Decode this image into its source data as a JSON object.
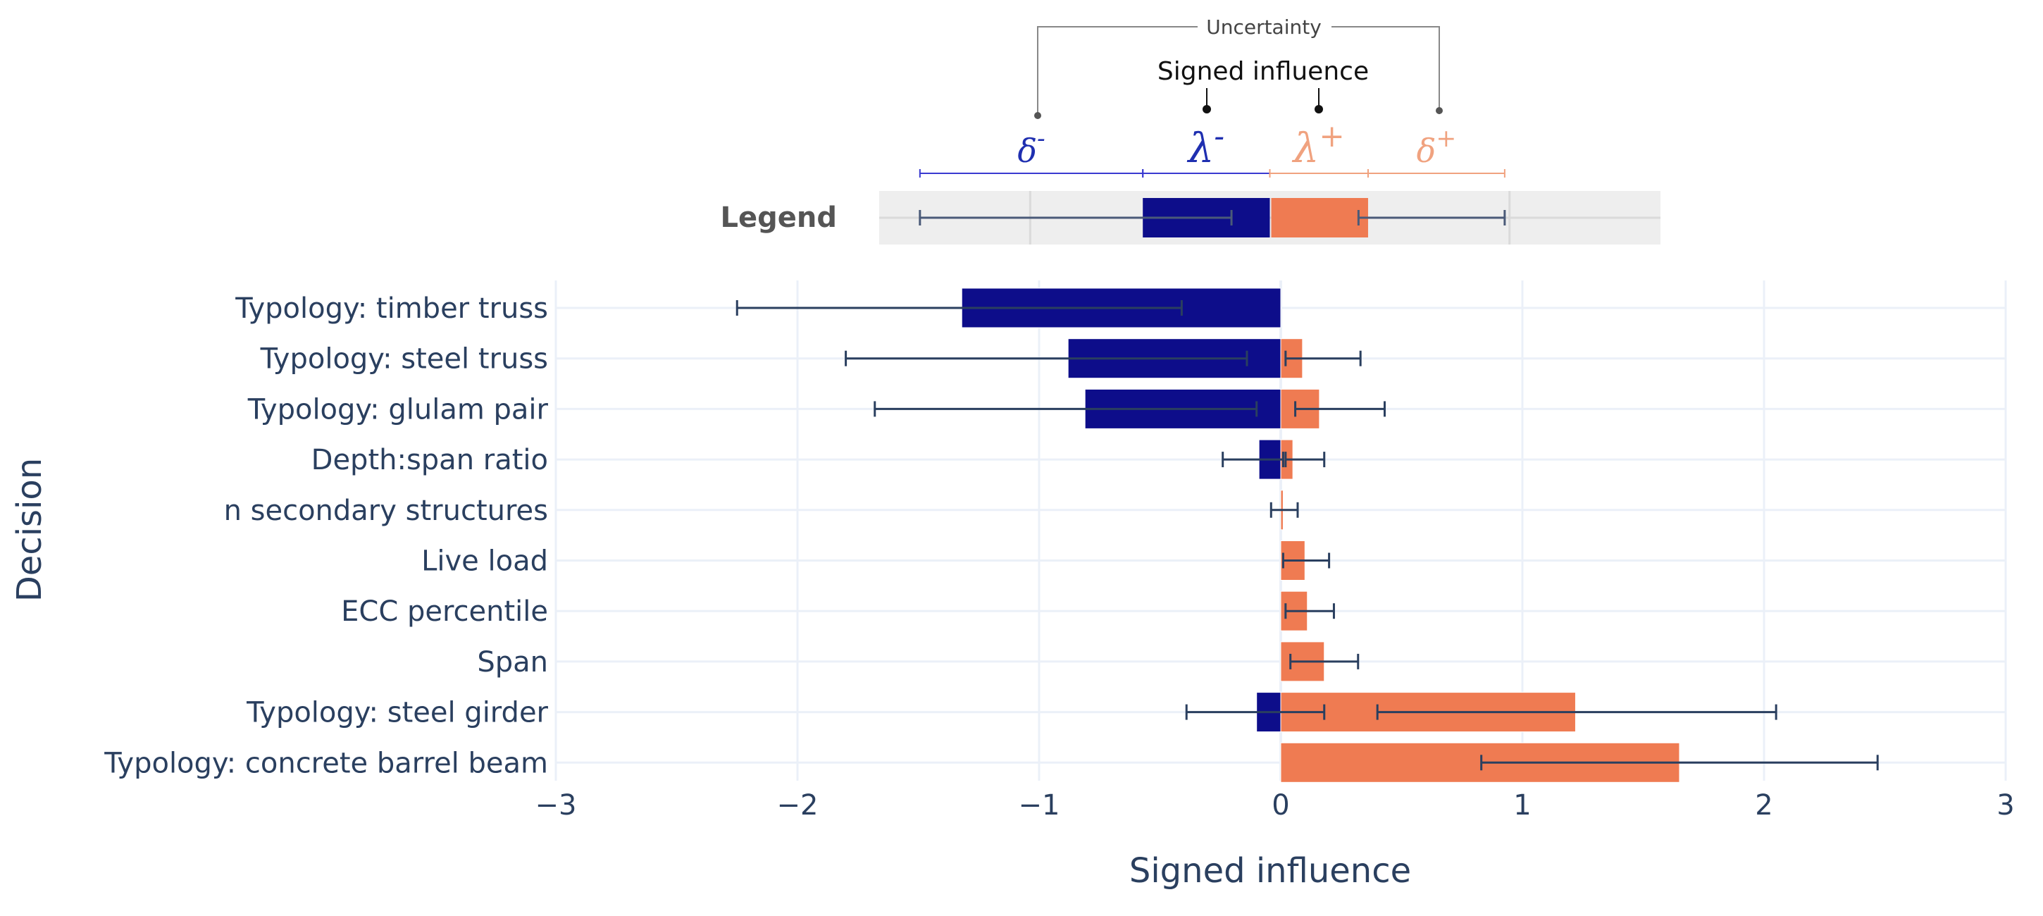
{
  "chart_data": {
    "type": "bar",
    "orientation": "horizontal",
    "title": "",
    "xlabel": "Signed influence",
    "ylabel": "Decision",
    "xlim": [
      -3,
      3
    ],
    "xticks": [
      -3,
      -2,
      -1,
      0,
      1,
      2,
      3
    ],
    "xtick_labels": [
      "−3",
      "−2",
      "−1",
      "0",
      "1",
      "2",
      "3"
    ],
    "grid": true,
    "colors": {
      "negative": "#0d0d8a",
      "positive": "#ef7b52",
      "error_bar": "#2a3f5f",
      "grid": "#ebf0f8",
      "text": "#2a3f5f"
    },
    "categories": [
      "Typology: timber truss",
      "Typology: steel truss",
      "Typology: glulam pair",
      "Depth:span ratio",
      "n secondary structures",
      "Live load",
      "ECC percentile",
      "Span",
      "Typology: steel girder",
      "Typology: concrete barrel beam"
    ],
    "series": [
      {
        "name": "λ⁻ (negative signed influence)",
        "values": [
          -1.32,
          -0.88,
          -0.81,
          -0.09,
          0,
          0,
          0,
          0,
          -0.1,
          0
        ],
        "error_minus": [
          0.93,
          0.92,
          0.87,
          0.15,
          0,
          0,
          0,
          0,
          0.29,
          0
        ],
        "error_plus": [
          0.91,
          0.74,
          0.71,
          0.1,
          0,
          0,
          0,
          0,
          0.28,
          0
        ]
      },
      {
        "name": "λ⁺ (positive signed influence)",
        "values": [
          0,
          0.09,
          0.16,
          0.05,
          0.01,
          0.1,
          0.11,
          0.18,
          1.22,
          1.65
        ],
        "error_minus": [
          0,
          0.07,
          0.1,
          0.03,
          0.05,
          0.09,
          0.09,
          0.14,
          0.82,
          0.82
        ],
        "error_plus": [
          0,
          0.24,
          0.27,
          0.13,
          0.06,
          0.1,
          0.11,
          0.14,
          0.83,
          0.82
        ]
      }
    ],
    "legend": {
      "title": "Legend",
      "position": "top",
      "neg_value": -0.53,
      "pos_value": 0.41,
      "neg_err_minus": 0.93,
      "neg_err_plus": 0.37,
      "pos_err_minus": 0.04,
      "pos_err_plus": 0.57,
      "range": [
        -1.63,
        1.63
      ],
      "grid": [
        -1,
        1
      ],
      "labels": {
        "delta_minus": "δ",
        "delta_minus_sup": "-",
        "lambda_minus": "λ",
        "lambda_minus_sup": "-",
        "lambda_plus": "λ",
        "lambda_plus_sup": "+",
        "delta_plus": "δ",
        "delta_plus_sup": "+"
      },
      "annotation_uncertainty": "Uncertainty",
      "annotation_signed": "Signed influence"
    }
  }
}
